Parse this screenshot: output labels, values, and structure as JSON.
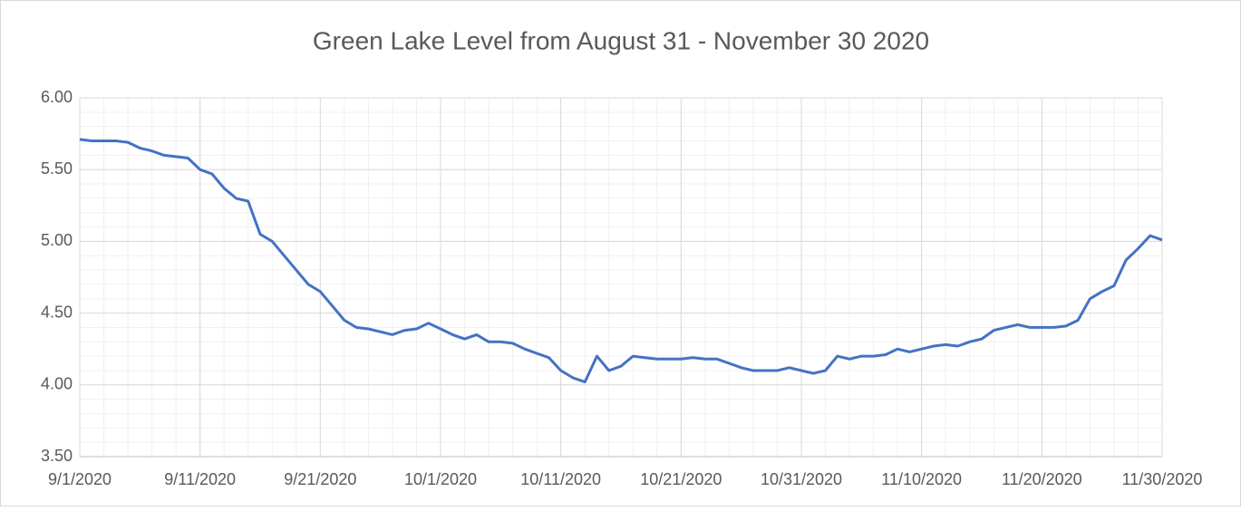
{
  "chart_data": {
    "type": "line",
    "title": "Green Lake Level from August 31 - November 30 2020",
    "x": [
      "9/1/2020",
      "9/2/2020",
      "9/3/2020",
      "9/4/2020",
      "9/5/2020",
      "9/6/2020",
      "9/7/2020",
      "9/8/2020",
      "9/9/2020",
      "9/10/2020",
      "9/11/2020",
      "9/12/2020",
      "9/13/2020",
      "9/14/2020",
      "9/15/2020",
      "9/16/2020",
      "9/17/2020",
      "9/18/2020",
      "9/19/2020",
      "9/20/2020",
      "9/21/2020",
      "9/22/2020",
      "9/23/2020",
      "9/24/2020",
      "9/25/2020",
      "9/26/2020",
      "9/27/2020",
      "9/28/2020",
      "9/29/2020",
      "9/30/2020",
      "10/1/2020",
      "10/2/2020",
      "10/3/2020",
      "10/4/2020",
      "10/5/2020",
      "10/6/2020",
      "10/7/2020",
      "10/8/2020",
      "10/9/2020",
      "10/10/2020",
      "10/11/2020",
      "10/12/2020",
      "10/13/2020",
      "10/14/2020",
      "10/15/2020",
      "10/16/2020",
      "10/17/2020",
      "10/18/2020",
      "10/19/2020",
      "10/20/2020",
      "10/21/2020",
      "10/22/2020",
      "10/23/2020",
      "10/24/2020",
      "10/25/2020",
      "10/26/2020",
      "10/27/2020",
      "10/28/2020",
      "10/29/2020",
      "10/30/2020",
      "10/31/2020",
      "11/1/2020",
      "11/2/2020",
      "11/3/2020",
      "11/4/2020",
      "11/5/2020",
      "11/6/2020",
      "11/7/2020",
      "11/8/2020",
      "11/9/2020",
      "11/10/2020",
      "11/11/2020",
      "11/12/2020",
      "11/13/2020",
      "11/14/2020",
      "11/15/2020",
      "11/16/2020",
      "11/17/2020",
      "11/18/2020",
      "11/19/2020",
      "11/20/2020",
      "11/21/2020",
      "11/22/2020",
      "11/23/2020",
      "11/24/2020",
      "11/25/2020",
      "11/26/2020",
      "11/27/2020",
      "11/28/2020",
      "11/29/2020",
      "11/30/2020"
    ],
    "series": [
      {
        "name": "Lake Level",
        "color": "#4472c4",
        "values": [
          5.71,
          5.7,
          5.7,
          5.7,
          5.69,
          5.65,
          5.63,
          5.6,
          5.59,
          5.58,
          5.5,
          5.47,
          5.37,
          5.3,
          5.28,
          5.05,
          5.0,
          4.9,
          4.8,
          4.7,
          4.65,
          4.55,
          4.45,
          4.4,
          4.39,
          4.37,
          4.35,
          4.38,
          4.39,
          4.43,
          4.39,
          4.35,
          4.32,
          4.35,
          4.3,
          4.3,
          4.29,
          4.25,
          4.22,
          4.19,
          4.1,
          4.05,
          4.02,
          4.2,
          4.1,
          4.13,
          4.2,
          4.19,
          4.18,
          4.18,
          4.18,
          4.19,
          4.18,
          4.18,
          4.15,
          4.12,
          4.1,
          4.1,
          4.1,
          4.12,
          4.1,
          4.08,
          4.1,
          4.2,
          4.18,
          4.2,
          4.2,
          4.21,
          4.25,
          4.23,
          4.25,
          4.27,
          4.28,
          4.27,
          4.3,
          4.32,
          4.38,
          4.4,
          4.42,
          4.4,
          4.4,
          4.4,
          4.41,
          4.45,
          4.6,
          4.65,
          4.69,
          4.87,
          4.95,
          5.04,
          5.01
        ]
      }
    ],
    "xlim": [
      "9/1/2020",
      "11/30/2020"
    ],
    "xticks": [
      "9/1/2020",
      "9/11/2020",
      "9/21/2020",
      "10/1/2020",
      "10/11/2020",
      "10/21/2020",
      "10/31/2020",
      "11/10/2020",
      "11/20/2020",
      "11/30/2020"
    ],
    "ylim": [
      3.5,
      6
    ],
    "yticks": [
      {
        "value": 3.5,
        "label": "3.50"
      },
      {
        "value": 4,
        "label": "4.00"
      },
      {
        "value": 4.5,
        "label": "4.50"
      },
      {
        "value": 5,
        "label": "5.00"
      },
      {
        "value": 5.5,
        "label": "5.50"
      },
      {
        "value": 6,
        "label": "6.00"
      }
    ],
    "grid": true,
    "minor_grid": true
  }
}
